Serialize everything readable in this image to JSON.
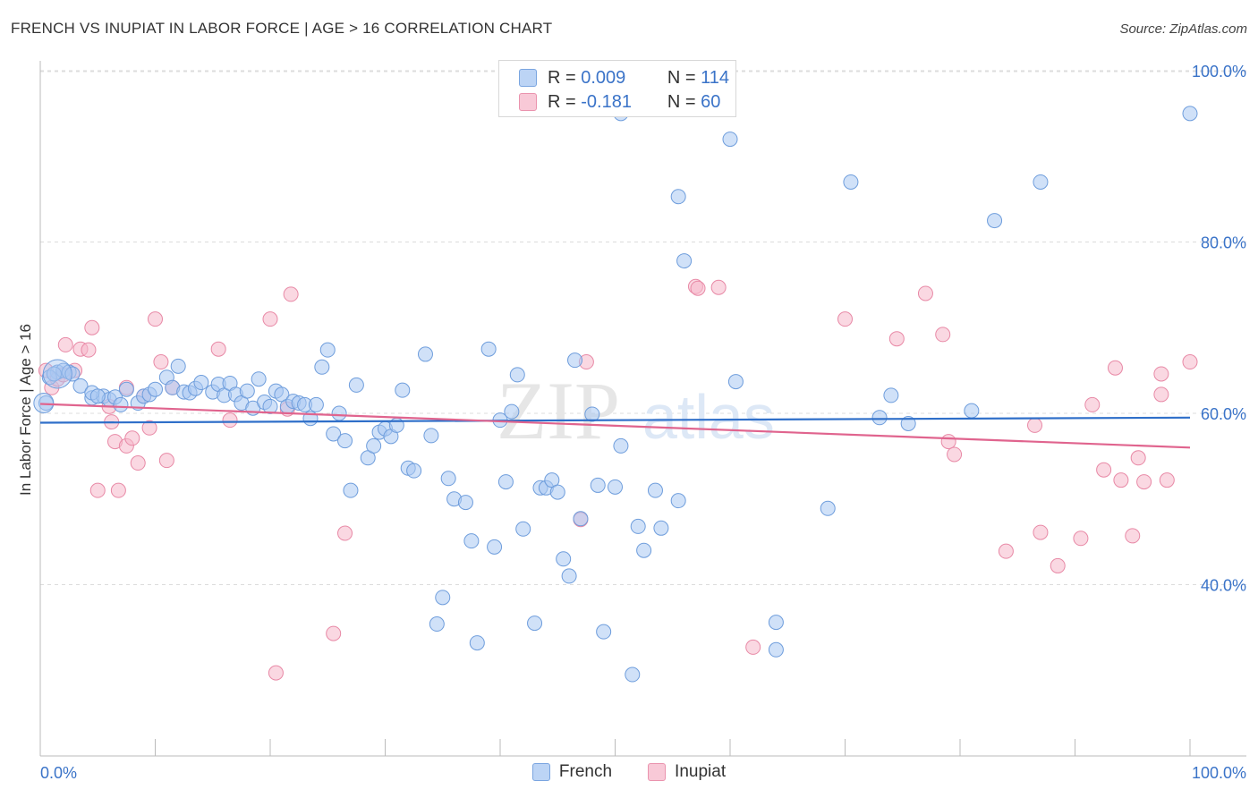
{
  "title": "FRENCH VS INUPIAT IN LABOR FORCE | AGE > 16 CORRELATION CHART",
  "source": "Source: ZipAtlas.com",
  "watermark": "ZIPatlas",
  "colors": {
    "french_fill": "#a9c8f2",
    "french_stroke": "#6e9ddc",
    "french_line": "#2f6fc9",
    "inupiat_fill": "#f6b8ca",
    "inupiat_stroke": "#e889a6",
    "inupiat_line": "#e0648e",
    "tick_label": "#3a73c8"
  },
  "legend": {
    "rows": [
      {
        "r_label": "R =",
        "r_value": "0.009",
        "n_label": "N =",
        "n_value": "114"
      },
      {
        "r_label": "R =",
        "r_value": "-0.181",
        "n_label": "N =",
        "n_value": "60"
      }
    ]
  },
  "chart_data": {
    "type": "scatter",
    "title": "FRENCH VS INUPIAT IN LABOR FORCE | AGE > 16 CORRELATION CHART",
    "xlabel": "",
    "ylabel": "In Labor Force | Age > 16",
    "xlim": [
      0,
      100
    ],
    "ylim": [
      20,
      100
    ],
    "x_tick_labels": [
      "0.0%",
      "100.0%"
    ],
    "y_ticks": [
      40,
      60,
      80,
      100
    ],
    "y_tick_labels": [
      "40.0%",
      "60.0%",
      "80.0%",
      "100.0%"
    ],
    "grid": "horizontal dashed",
    "legend_position": "top-center and bottom",
    "series": [
      {
        "name": "French",
        "R": 0.009,
        "N": 114,
        "trend": {
          "x": [
            0,
            100
          ],
          "y": [
            58.9,
            59.5
          ]
        },
        "points": [
          [
            0.5,
            61.2
          ],
          [
            1.5,
            64.8
          ],
          [
            2.0,
            65.0
          ],
          [
            2.5,
            64.8
          ],
          [
            3.5,
            63.2
          ],
          [
            4.5,
            61.8
          ],
          [
            5.5,
            62.0
          ],
          [
            6.0,
            61.6
          ],
          [
            6.5,
            61.9
          ],
          [
            7.5,
            62.8
          ],
          [
            8.5,
            61.2
          ],
          [
            9.0,
            62.0
          ],
          [
            9.5,
            62.2
          ],
          [
            10.0,
            62.8
          ],
          [
            11.0,
            64.2
          ],
          [
            11.5,
            63.0
          ],
          [
            12.0,
            65.5
          ],
          [
            12.5,
            62.5
          ],
          [
            13.0,
            62.4
          ],
          [
            13.5,
            62.9
          ],
          [
            14.0,
            63.6
          ],
          [
            15.0,
            62.5
          ],
          [
            15.5,
            63.4
          ],
          [
            16.0,
            62.1
          ],
          [
            16.5,
            63.5
          ],
          [
            17.0,
            62.2
          ],
          [
            17.5,
            61.2
          ],
          [
            18.0,
            62.6
          ],
          [
            18.5,
            60.6
          ],
          [
            19.0,
            64.0
          ],
          [
            19.5,
            61.3
          ],
          [
            20.0,
            60.8
          ],
          [
            20.5,
            62.6
          ],
          [
            21.0,
            62.2
          ],
          [
            21.5,
            60.8
          ],
          [
            22.0,
            61.4
          ],
          [
            22.5,
            61.2
          ],
          [
            23.0,
            61.0
          ],
          [
            23.5,
            59.4
          ],
          [
            24.0,
            61.0
          ],
          [
            24.5,
            65.4
          ],
          [
            25.0,
            67.4
          ],
          [
            25.5,
            57.6
          ],
          [
            26.0,
            60.0
          ],
          [
            26.5,
            56.8
          ],
          [
            27.0,
            51.0
          ],
          [
            27.5,
            63.3
          ],
          [
            28.5,
            54.8
          ],
          [
            29.0,
            56.2
          ],
          [
            29.5,
            57.8
          ],
          [
            30.0,
            58.2
          ],
          [
            30.5,
            57.3
          ],
          [
            31.0,
            58.6
          ],
          [
            31.5,
            62.7
          ],
          [
            32.0,
            53.6
          ],
          [
            32.5,
            53.3
          ],
          [
            33.5,
            66.9
          ],
          [
            34.0,
            57.4
          ],
          [
            34.5,
            35.4
          ],
          [
            35.0,
            38.5
          ],
          [
            35.5,
            52.4
          ],
          [
            36.0,
            50.0
          ],
          [
            37.0,
            49.6
          ],
          [
            37.5,
            45.1
          ],
          [
            38.0,
            33.2
          ],
          [
            39.0,
            67.5
          ],
          [
            39.5,
            44.4
          ],
          [
            40.0,
            59.2
          ],
          [
            40.5,
            52.0
          ],
          [
            41.0,
            60.2
          ],
          [
            41.5,
            64.5
          ],
          [
            42.0,
            46.5
          ],
          [
            43.0,
            35.5
          ],
          [
            43.5,
            51.3
          ],
          [
            44.0,
            51.3
          ],
          [
            44.5,
            52.2
          ],
          [
            45.0,
            50.8
          ],
          [
            45.5,
            43.0
          ],
          [
            46.0,
            41.0
          ],
          [
            46.5,
            66.2
          ],
          [
            47.0,
            47.7
          ],
          [
            48.0,
            59.9
          ],
          [
            48.5,
            51.6
          ],
          [
            49.0,
            34.5
          ],
          [
            50.0,
            51.4
          ],
          [
            50.5,
            56.2
          ],
          [
            50.5,
            95.0
          ],
          [
            51.5,
            29.5
          ],
          [
            52.0,
            46.8
          ],
          [
            52.5,
            44.0
          ],
          [
            53.5,
            51.0
          ],
          [
            54.0,
            46.6
          ],
          [
            55.5,
            49.8
          ],
          [
            55.5,
            85.3
          ],
          [
            56.0,
            77.8
          ],
          [
            60.0,
            92.0
          ],
          [
            60.5,
            63.7
          ],
          [
            64.0,
            35.6
          ],
          [
            64.0,
            32.4
          ],
          [
            68.5,
            48.9
          ],
          [
            70.5,
            87.0
          ],
          [
            73.0,
            59.5
          ],
          [
            74.0,
            62.1
          ],
          [
            75.5,
            58.8
          ],
          [
            81.0,
            60.3
          ],
          [
            83.0,
            82.5
          ],
          [
            87.0,
            87.0
          ],
          [
            100.0,
            95.0
          ],
          [
            0.8,
            64.2
          ],
          [
            1.2,
            64.6
          ],
          [
            2.8,
            64.6
          ],
          [
            4.5,
            62.4
          ],
          [
            5.0,
            62.0
          ],
          [
            7.0,
            61.0
          ]
        ]
      },
      {
        "name": "Inupiat",
        "R": -0.181,
        "N": 60,
        "trend": {
          "x": [
            0,
            100
          ],
          "y": [
            61.1,
            56.0
          ]
        },
        "points": [
          [
            0.5,
            65.0
          ],
          [
            1.0,
            63.0
          ],
          [
            1.5,
            64.0
          ],
          [
            2.0,
            64.5
          ],
          [
            2.2,
            68.0
          ],
          [
            3.0,
            65.0
          ],
          [
            3.5,
            67.5
          ],
          [
            4.2,
            67.4
          ],
          [
            4.5,
            70.0
          ],
          [
            5.0,
            51.0
          ],
          [
            6.0,
            60.8
          ],
          [
            6.2,
            59.0
          ],
          [
            6.5,
            56.7
          ],
          [
            6.8,
            51.0
          ],
          [
            7.5,
            63.0
          ],
          [
            7.5,
            56.2
          ],
          [
            8.0,
            57.1
          ],
          [
            8.5,
            54.2
          ],
          [
            9.0,
            62.0
          ],
          [
            9.5,
            58.3
          ],
          [
            10.0,
            71.0
          ],
          [
            10.5,
            66.0
          ],
          [
            11.0,
            54.5
          ],
          [
            11.5,
            63.0
          ],
          [
            15.5,
            67.5
          ],
          [
            16.5,
            59.2
          ],
          [
            20.0,
            71.0
          ],
          [
            20.5,
            29.7
          ],
          [
            21.5,
            60.5
          ],
          [
            21.8,
            73.9
          ],
          [
            25.5,
            34.3
          ],
          [
            26.5,
            46.0
          ],
          [
            47.0,
            47.6
          ],
          [
            47.5,
            66.0
          ],
          [
            57.0,
            74.8
          ],
          [
            57.2,
            74.6
          ],
          [
            59.0,
            74.7
          ],
          [
            62.0,
            32.7
          ],
          [
            70.0,
            71.0
          ],
          [
            74.5,
            68.7
          ],
          [
            77.0,
            74.0
          ],
          [
            78.5,
            69.2
          ],
          [
            79.0,
            56.7
          ],
          [
            79.5,
            55.2
          ],
          [
            84.0,
            43.9
          ],
          [
            86.5,
            58.6
          ],
          [
            87.0,
            46.1
          ],
          [
            88.5,
            42.2
          ],
          [
            90.5,
            45.4
          ],
          [
            91.5,
            61.0
          ],
          [
            92.5,
            53.4
          ],
          [
            93.5,
            65.3
          ],
          [
            94.0,
            52.2
          ],
          [
            95.0,
            45.7
          ],
          [
            95.5,
            54.8
          ],
          [
            96.0,
            52.0
          ],
          [
            97.5,
            64.6
          ],
          [
            97.5,
            62.2
          ],
          [
            98.0,
            52.2
          ],
          [
            100.0,
            66.0
          ]
        ]
      }
    ]
  }
}
